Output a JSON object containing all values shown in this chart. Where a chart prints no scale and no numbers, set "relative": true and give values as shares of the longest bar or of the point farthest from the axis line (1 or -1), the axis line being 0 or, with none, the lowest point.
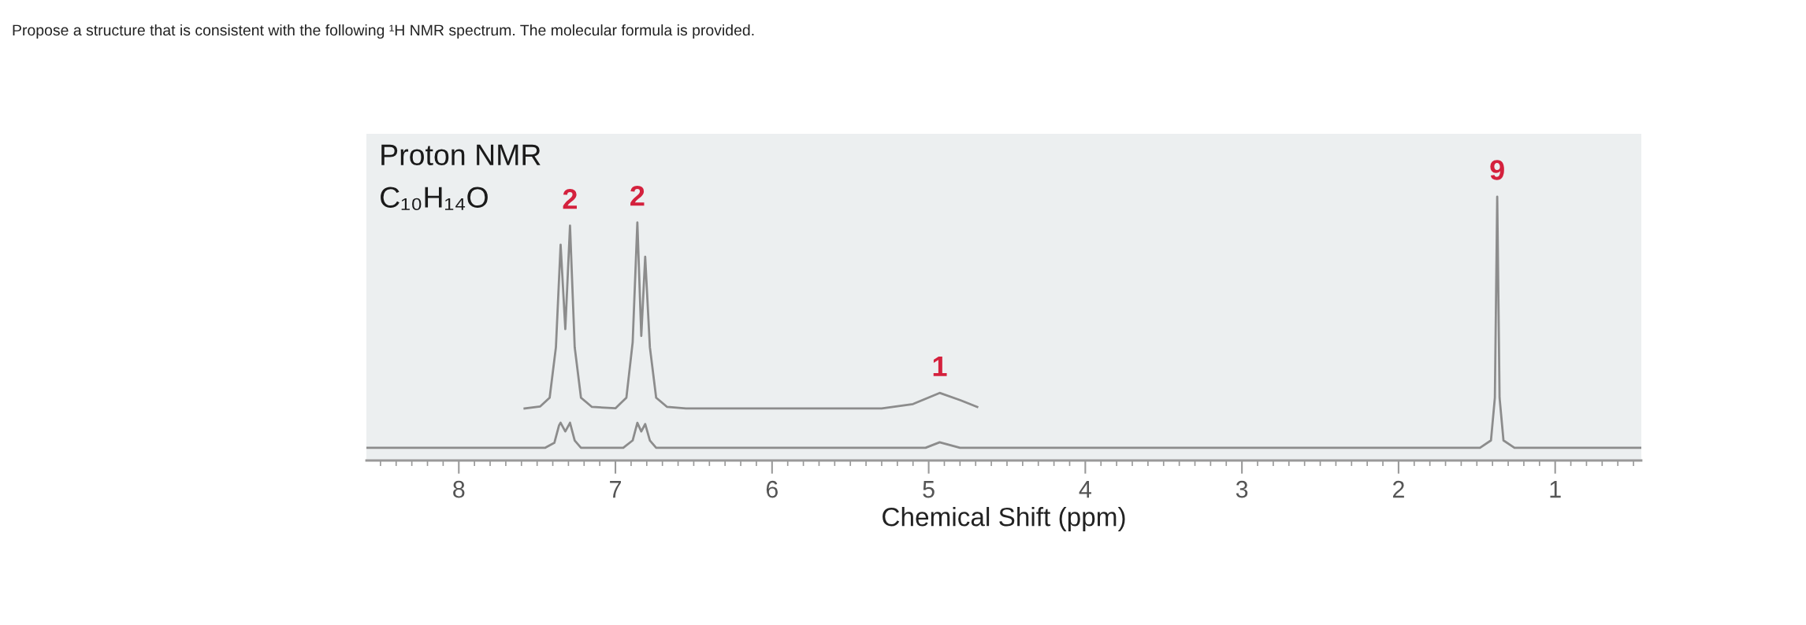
{
  "chart_data": {
    "type": "line",
    "relative": true,
    "title": "Propose a structure that is consistent with the following ¹H NMR spectrum. The molecular formula is provided.",
    "xlabel": "Chemical Shift (ppm)",
    "xlim": [
      8.59,
      0.45
    ],
    "xticks": [
      8,
      7,
      6,
      5,
      4,
      3,
      2,
      1
    ],
    "grid": false,
    "legend": false,
    "marker": "none",
    "line_style": "solid",
    "series": [
      {
        "color": "#8c8c8c",
        "x": [
          8.59,
          7.45,
          7.39,
          7.36,
          7.35,
          7.32,
          7.29,
          7.26,
          7.22,
          6.95,
          6.89,
          6.86,
          6.835,
          6.81,
          6.78,
          6.74,
          5.02,
          4.93,
          4.8,
          1.48,
          1.41,
          1.385,
          1.37,
          1.355,
          1.33,
          1.26,
          0.45
        ],
        "values": [
          0.048,
          0.048,
          0.067,
          0.133,
          0.143,
          0.11,
          0.143,
          0.076,
          0.048,
          0.048,
          0.076,
          0.143,
          0.11,
          0.138,
          0.076,
          0.048,
          0.048,
          0.069,
          0.048,
          0.048,
          0.076,
          0.238,
          1,
          0.238,
          0.076,
          0.048,
          0.048
        ]
      },
      {
        "color": "#8c8c8c",
        "x": [
          7.58,
          7.48,
          7.42,
          7.38,
          7.35,
          7.32,
          7.29,
          7.26,
          7.22,
          7.15,
          7.0,
          6.93,
          6.89,
          6.86,
          6.835,
          6.81,
          6.78,
          6.74,
          6.67,
          6.55,
          5.3,
          5.1,
          4.93,
          4.8,
          4.69
        ],
        "values": [
          0.197,
          0.205,
          0.238,
          0.429,
          0.818,
          0.498,
          0.89,
          0.429,
          0.238,
          0.203,
          0.198,
          0.238,
          0.448,
          0.902,
          0.472,
          0.772,
          0.429,
          0.238,
          0.203,
          0.197,
          0.197,
          0.214,
          0.256,
          0.229,
          0.203
        ]
      }
    ],
    "annotations": [
      "Proton NMR",
      "C₁₀H₁₄O",
      {
        "text": "2",
        "x": 7.29,
        "y": 0.89
      },
      {
        "text": "2",
        "x": 6.86,
        "y": 0.902
      },
      {
        "text": "1",
        "x": 4.93,
        "y": 0.256
      },
      {
        "text": "9",
        "x": 1.37,
        "y": 1
      }
    ]
  }
}
